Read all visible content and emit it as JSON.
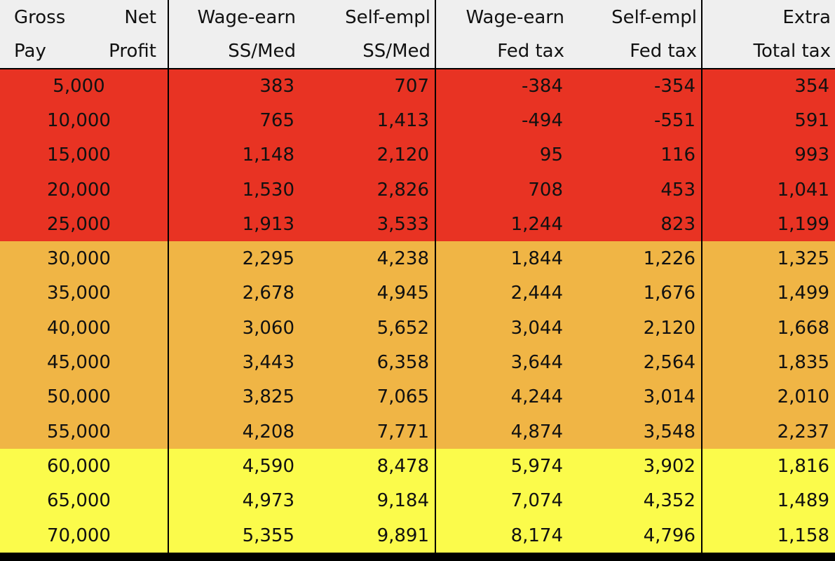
{
  "colors": {
    "header_bg": "#efefef",
    "red": "#e83323",
    "orange": "#f0b545",
    "yellow": "#fbfb4b",
    "frame": "#000000"
  },
  "headers": {
    "gross_pay": {
      "top": "Gross",
      "bottom": "Pay"
    },
    "net_profit": {
      "top": "Net",
      "bottom": "Profit"
    },
    "wage_ssmed": {
      "top": "Wage-earn",
      "bottom": "SS/Med"
    },
    "self_ssmed": {
      "top": "Self-empl",
      "bottom": "SS/Med"
    },
    "wage_fed": {
      "top": "Wage-earn",
      "bottom": "Fed tax"
    },
    "self_fed": {
      "top": "Self-empl",
      "bottom": "Fed tax"
    },
    "extra_total": {
      "top": "Extra",
      "bottom": "Total tax"
    }
  },
  "rows": [
    {
      "band": "red",
      "gross": "5,000",
      "wage_ssmed": "383",
      "self_ssmed": "707",
      "wage_fed": "-384",
      "self_fed": "-354",
      "extra": "354"
    },
    {
      "band": "red",
      "gross": "10,000",
      "wage_ssmed": "765",
      "self_ssmed": "1,413",
      "wage_fed": "-494",
      "self_fed": "-551",
      "extra": "591"
    },
    {
      "band": "red",
      "gross": "15,000",
      "wage_ssmed": "1,148",
      "self_ssmed": "2,120",
      "wage_fed": "95",
      "self_fed": "116",
      "extra": "993"
    },
    {
      "band": "red",
      "gross": "20,000",
      "wage_ssmed": "1,530",
      "self_ssmed": "2,826",
      "wage_fed": "708",
      "self_fed": "453",
      "extra": "1,041"
    },
    {
      "band": "red",
      "gross": "25,000",
      "wage_ssmed": "1,913",
      "self_ssmed": "3,533",
      "wage_fed": "1,244",
      "self_fed": "823",
      "extra": "1,199"
    },
    {
      "band": "orange",
      "gross": "30,000",
      "wage_ssmed": "2,295",
      "self_ssmed": "4,238",
      "wage_fed": "1,844",
      "self_fed": "1,226",
      "extra": "1,325"
    },
    {
      "band": "orange",
      "gross": "35,000",
      "wage_ssmed": "2,678",
      "self_ssmed": "4,945",
      "wage_fed": "2,444",
      "self_fed": "1,676",
      "extra": "1,499"
    },
    {
      "band": "orange",
      "gross": "40,000",
      "wage_ssmed": "3,060",
      "self_ssmed": "5,652",
      "wage_fed": "3,044",
      "self_fed": "2,120",
      "extra": "1,668"
    },
    {
      "band": "orange",
      "gross": "45,000",
      "wage_ssmed": "3,443",
      "self_ssmed": "6,358",
      "wage_fed": "3,644",
      "self_fed": "2,564",
      "extra": "1,835"
    },
    {
      "band": "orange",
      "gross": "50,000",
      "wage_ssmed": "3,825",
      "self_ssmed": "7,065",
      "wage_fed": "4,244",
      "self_fed": "3,014",
      "extra": "2,010"
    },
    {
      "band": "orange",
      "gross": "55,000",
      "wage_ssmed": "4,208",
      "self_ssmed": "7,771",
      "wage_fed": "4,874",
      "self_fed": "3,548",
      "extra": "2,237"
    },
    {
      "band": "yellow",
      "gross": "60,000",
      "wage_ssmed": "4,590",
      "self_ssmed": "8,478",
      "wage_fed": "5,974",
      "self_fed": "3,902",
      "extra": "1,816"
    },
    {
      "band": "yellow",
      "gross": "65,000",
      "wage_ssmed": "4,973",
      "self_ssmed": "9,184",
      "wage_fed": "7,074",
      "self_fed": "4,352",
      "extra": "1,489"
    },
    {
      "band": "yellow",
      "gross": "70,000",
      "wage_ssmed": "5,355",
      "self_ssmed": "9,891",
      "wage_fed": "8,174",
      "self_fed": "4,796",
      "extra": "1,158"
    }
  ]
}
